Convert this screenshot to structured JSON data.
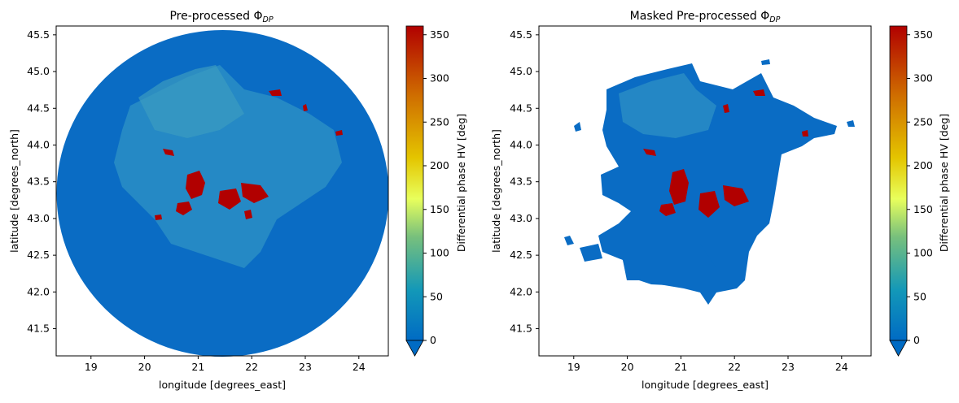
{
  "chart_data": [
    {
      "type": "heatmap",
      "title_main": "Pre-processed Φ",
      "title_sub": "DP",
      "xlabel": "longitude [degrees_east]",
      "ylabel": "latitude [degrees_north]",
      "xlim": [
        18.35,
        24.55
      ],
      "ylim": [
        41.13,
        45.62
      ],
      "xticks": [
        "19",
        "20",
        "21",
        "22",
        "23",
        "24"
      ],
      "yticks": [
        "41.5",
        "42.0",
        "42.5",
        "43.0",
        "43.5",
        "44.0",
        "44.5",
        "45.0",
        "45.5"
      ],
      "data_extent": "full radar circle",
      "radar_center": [
        21.45,
        43.38
      ],
      "colorbar": {
        "label": "Differential phase HV [deg]",
        "range": [
          0,
          360
        ],
        "ticks": [
          "0",
          "50",
          "100",
          "150",
          "200",
          "250",
          "300",
          "350"
        ],
        "extend": "min",
        "colors": [
          "#006bc4",
          "#1398b8",
          "#78c07c",
          "#e8ff5c",
          "#e4c500",
          "#cf6d00",
          "#b10000"
        ]
      },
      "background_value_deg": 0,
      "background_color": "#0a6cc4"
    },
    {
      "type": "heatmap",
      "title_main": "Masked Pre-processed Φ",
      "title_sub": "DP",
      "xlabel": "longitude [degrees_east]",
      "ylabel": "latitude [degrees_north]",
      "xlim": [
        18.35,
        24.55
      ],
      "ylim": [
        41.13,
        45.62
      ],
      "xticks": [
        "19",
        "20",
        "21",
        "22",
        "23",
        "24"
      ],
      "yticks": [
        "41.5",
        "42.0",
        "42.5",
        "43.0",
        "43.5",
        "44.0",
        "44.5",
        "45.0",
        "45.5"
      ],
      "data_extent": "masked echo region",
      "radar_center": [
        21.45,
        43.38
      ],
      "colorbar": {
        "label": "Differential phase HV [deg]",
        "range": [
          0,
          360
        ],
        "ticks": [
          "0",
          "50",
          "100",
          "150",
          "200",
          "250",
          "300",
          "350"
        ],
        "extend": "min",
        "colors": [
          "#006bc4",
          "#1398b8",
          "#78c07c",
          "#e8ff5c",
          "#e4c500",
          "#cf6d00",
          "#b10000"
        ]
      },
      "background_value_deg": 0,
      "background_color": "#0a6cc4"
    }
  ]
}
